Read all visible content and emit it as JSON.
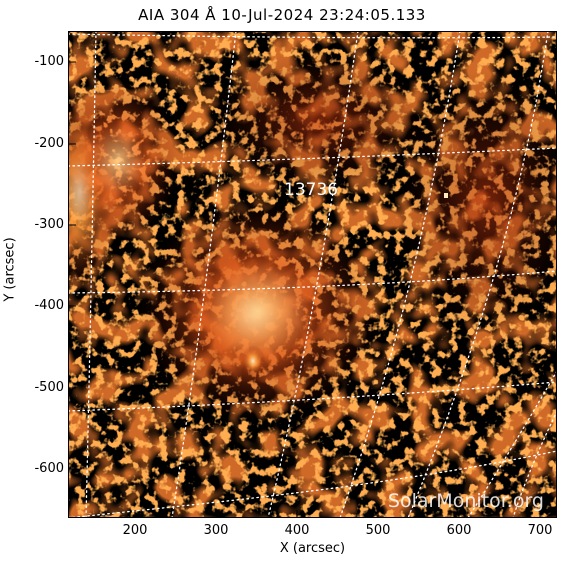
{
  "title": "AIA 304 Å 10-Jul-2024 23:24:05.133",
  "axes": {
    "xlabel": "X (arcsec)",
    "ylabel": "Y (arcsec)",
    "xticks": [
      "200",
      "300",
      "400",
      "500",
      "600",
      "700"
    ],
    "yticks": [
      "-100",
      "-200",
      "-300",
      "-400",
      "-500",
      "-600"
    ]
  },
  "region_label": "13736",
  "watermark": "SolarMonitor.org",
  "colors": {
    "background": "#000000",
    "hot": "#ff8a2a",
    "grid": "#ffffff"
  }
}
